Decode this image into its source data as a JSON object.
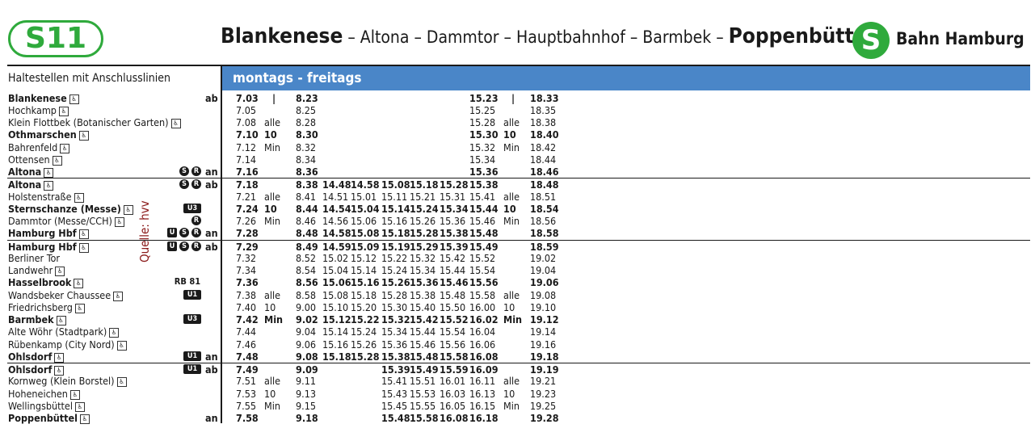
{
  "header": {
    "line": "S11",
    "route_start": "Blankenese",
    "route_mid": "– Altona – Dammtor – Hauptbahnhof – Barmbek –",
    "route_end": "Poppenbüttel",
    "logo_letter": "S",
    "operator": "Bahn Hamburg"
  },
  "table": {
    "stops_header": "Haltestellen mit Anschlusslinien",
    "day_header": "montags - freitags",
    "source_note": "Quelle: hvv",
    "rows": [
      {
        "name": "Blankenese",
        "acc": true,
        "bold": true,
        "conn": [],
        "arr": "ab",
        "t1": "7.03",
        "f1": "|",
        "t2": "8.23",
        "mid": [
          "",
          "",
          "",
          "",
          "",
          ""
        ],
        "t3": "15.23",
        "f2": "|",
        "t4": "18.33",
        "sep": false,
        "alt": false
      },
      {
        "name": "Hochkamp",
        "acc": true,
        "bold": false,
        "conn": [],
        "arr": "",
        "t1": "7.05",
        "f1": "",
        "t2": "8.25",
        "mid": [
          "",
          "",
          "",
          "",
          "",
          ""
        ],
        "t3": "15.25",
        "f2": "",
        "t4": "18.35",
        "sep": false,
        "alt": false
      },
      {
        "name": "Klein Flottbek (Botanischer Garten)",
        "acc": true,
        "bold": false,
        "conn": [],
        "arr": "",
        "t1": "7.08",
        "f1": "alle",
        "t2": "8.28",
        "mid": [
          "",
          "",
          "",
          "",
          "",
          ""
        ],
        "t3": "15.28",
        "f2": "alle",
        "t4": "18.38",
        "sep": false,
        "alt": false
      },
      {
        "name": "Othmarschen",
        "acc": true,
        "bold": true,
        "conn": [],
        "arr": "",
        "t1": "7.10",
        "f1": "10",
        "t2": "8.30",
        "mid": [
          "",
          "",
          "",
          "",
          "",
          ""
        ],
        "t3": "15.30",
        "f2": "10",
        "t4": "18.40",
        "sep": false,
        "alt": false
      },
      {
        "name": "Bahrenfeld",
        "acc": true,
        "bold": false,
        "conn": [],
        "arr": "",
        "t1": "7.12",
        "f1": "Min",
        "t2": "8.32",
        "mid": [
          "",
          "",
          "",
          "",
          "",
          ""
        ],
        "t3": "15.32",
        "f2": "Min",
        "t4": "18.42",
        "sep": false,
        "alt": false
      },
      {
        "name": "Ottensen",
        "acc": true,
        "bold": false,
        "conn": [],
        "arr": "",
        "t1": "7.14",
        "f1": "",
        "t2": "8.34",
        "mid": [
          "",
          "",
          "",
          "",
          "",
          ""
        ],
        "t3": "15.34",
        "f2": "",
        "t4": "18.44",
        "sep": false,
        "alt": false
      },
      {
        "name": "Altona",
        "acc": true,
        "bold": true,
        "conn": [
          "S",
          "R"
        ],
        "arr": "an",
        "t1": "7.16",
        "f1": "",
        "t2": "8.36",
        "mid": [
          "",
          "",
          "",
          "",
          "",
          ""
        ],
        "t3": "15.36",
        "f2": "",
        "t4": "18.46",
        "sep": false,
        "alt": false
      },
      {
        "name": "Altona",
        "acc": true,
        "bold": true,
        "conn": [
          "S",
          "R"
        ],
        "arr": "ab",
        "t1": "7.18",
        "f1": "",
        "t2": "8.38",
        "mid": [
          "14.48",
          "14.58",
          "15.08",
          "15.18",
          "15.28",
          "15.38"
        ],
        "t3": "",
        "f2": "",
        "t4": "18.48",
        "sep": true,
        "alt": false
      },
      {
        "name": "Holstenstraße",
        "acc": true,
        "bold": false,
        "conn": [],
        "arr": "",
        "t1": "7.21",
        "f1": "alle",
        "t2": "8.41",
        "mid": [
          "14.51",
          "15.01",
          "15.11",
          "15.21",
          "15.31",
          "15.41"
        ],
        "t3": "",
        "f2": "alle",
        "t4": "18.51",
        "sep": false,
        "alt": false
      },
      {
        "name": "Sternschanze (Messe)",
        "acc": true,
        "bold": true,
        "conn": [
          "U3"
        ],
        "arr": "",
        "t1": "7.24",
        "f1": "10",
        "t2": "8.44",
        "mid": [
          "14.54",
          "15.04",
          "15.14",
          "15.24",
          "15.34",
          "15.44"
        ],
        "t3": "",
        "f2": "10",
        "t4": "18.54",
        "sep": false,
        "alt": false
      },
      {
        "name": "Dammtor (Messe/CCH)",
        "acc": true,
        "bold": false,
        "conn": [
          "R"
        ],
        "arr": "",
        "t1": "7.26",
        "f1": "Min",
        "t2": "8.46",
        "mid": [
          "14.56",
          "15.06",
          "15.16",
          "15.26",
          "15.36",
          "15.46"
        ],
        "t3": "",
        "f2": "Min",
        "t4": "18.56",
        "sep": false,
        "alt": false
      },
      {
        "name": "Hamburg Hbf",
        "acc": true,
        "bold": true,
        "conn": [
          "U",
          "S",
          "R"
        ],
        "arr": "an",
        "t1": "7.28",
        "f1": "",
        "t2": "8.48",
        "mid": [
          "14.58",
          "15.08",
          "15.18",
          "15.28",
          "15.38",
          "15.48"
        ],
        "t3": "",
        "f2": "",
        "t4": "18.58",
        "sep": false,
        "alt": false
      },
      {
        "name": "Hamburg Hbf",
        "acc": true,
        "bold": true,
        "conn": [
          "U",
          "S",
          "R"
        ],
        "arr": "ab",
        "t1": "7.29",
        "f1": "",
        "t2": "8.49",
        "mid": [
          "14.59",
          "15.09",
          "15.19",
          "15.29",
          "15.39",
          "15.49"
        ],
        "t3": "",
        "f2": "",
        "t4": "18.59",
        "sep": true,
        "alt": false
      },
      {
        "name": "Berliner Tor",
        "acc": false,
        "bold": false,
        "conn": [],
        "arr": "",
        "t1": "7.32",
        "f1": "",
        "t2": "8.52",
        "mid": [
          "15.02",
          "15.12",
          "15.22",
          "15.32",
          "15.42",
          "15.52"
        ],
        "t3": "",
        "f2": "",
        "t4": "19.02",
        "sep": false,
        "alt": false
      },
      {
        "name": "Landwehr",
        "acc": true,
        "bold": false,
        "conn": [],
        "arr": "",
        "t1": "7.34",
        "f1": "",
        "t2": "8.54",
        "mid": [
          "15.04",
          "15.14",
          "15.24",
          "15.34",
          "15.44",
          "15.54"
        ],
        "t3": "",
        "f2": "",
        "t4": "19.04",
        "sep": false,
        "alt": false
      },
      {
        "name": "Hasselbrook",
        "acc": true,
        "bold": true,
        "conn": [
          "RB 81"
        ],
        "arr": "",
        "t1": "7.36",
        "f1": "",
        "t2": "8.56",
        "mid": [
          "15.06",
          "15.16",
          "15.26",
          "15.36",
          "15.46",
          "15.56"
        ],
        "t3": "",
        "f2": "",
        "t4": "19.06",
        "sep": false,
        "alt": false
      },
      {
        "name": "Wandsbeker Chaussee",
        "acc": true,
        "bold": false,
        "conn": [
          "U1"
        ],
        "arr": "",
        "t1": "7.38",
        "f1": "alle",
        "t2": "8.58",
        "mid": [
          "15.08",
          "15.18",
          "15.28",
          "15.38",
          "15.48",
          "15.58"
        ],
        "t3": "",
        "f2": "alle",
        "t4": "19.08",
        "sep": false,
        "alt": false
      },
      {
        "name": "Friedrichsberg",
        "acc": true,
        "bold": false,
        "conn": [],
        "arr": "",
        "t1": "7.40",
        "f1": "10",
        "t2": "9.00",
        "mid": [
          "15.10",
          "15.20",
          "15.30",
          "15.40",
          "15.50",
          "16.00"
        ],
        "t3": "",
        "f2": "10",
        "t4": "19.10",
        "sep": false,
        "alt": false
      },
      {
        "name": "Barmbek",
        "acc": true,
        "bold": true,
        "conn": [
          "U3"
        ],
        "arr": "",
        "t1": "7.42",
        "f1": "Min",
        "t2": "9.02",
        "mid": [
          "15.12",
          "15.22",
          "15.32",
          "15.42",
          "15.52",
          "16.02"
        ],
        "t3": "",
        "f2": "Min",
        "t4": "19.12",
        "sep": false,
        "alt": false
      },
      {
        "name": "Alte Wöhr (Stadtpark)",
        "acc": true,
        "bold": false,
        "conn": [],
        "arr": "",
        "t1": "7.44",
        "f1": "",
        "t2": "9.04",
        "mid": [
          "15.14",
          "15.24",
          "15.34",
          "15.44",
          "15.54",
          "16.04"
        ],
        "t3": "",
        "f2": "",
        "t4": "19.14",
        "sep": false,
        "alt": false
      },
      {
        "name": "Rübenkamp (City Nord)",
        "acc": true,
        "bold": false,
        "conn": [],
        "arr": "",
        "t1": "7.46",
        "f1": "",
        "t2": "9.06",
        "mid": [
          "15.16",
          "15.26",
          "15.36",
          "15.46",
          "15.56",
          "16.06"
        ],
        "t3": "",
        "f2": "",
        "t4": "19.16",
        "sep": false,
        "alt": false
      },
      {
        "name": "Ohlsdorf",
        "acc": true,
        "bold": true,
        "conn": [
          "U1"
        ],
        "arr": "an",
        "t1": "7.48",
        "f1": "",
        "t2": "9.08",
        "mid": [
          "15.18",
          "15.28",
          "15.38",
          "15.48",
          "15.58",
          "16.08"
        ],
        "t3": "",
        "f2": "",
        "t4": "19.18",
        "sep": false,
        "alt": false
      },
      {
        "name": "Ohlsdorf",
        "acc": true,
        "bold": true,
        "conn": [
          "U1"
        ],
        "arr": "ab",
        "t1": "7.49",
        "f1": "",
        "t2": "9.09",
        "mid": [
          "",
          "",
          "15.39",
          "15.49",
          "15.59",
          "16.09"
        ],
        "t3": "",
        "f2": "",
        "t4": "19.19",
        "sep": true,
        "alt": false
      },
      {
        "name": "Kornweg (Klein Borstel)",
        "acc": true,
        "bold": false,
        "conn": [],
        "arr": "",
        "t1": "7.51",
        "f1": "alle",
        "t2": "9.11",
        "mid": [
          "",
          "",
          "15.41",
          "15.51",
          "16.01",
          "16.11"
        ],
        "t3": "",
        "f2": "alle",
        "t4": "19.21",
        "sep": false,
        "alt": false
      },
      {
        "name": "Hoheneichen",
        "acc": true,
        "bold": false,
        "conn": [],
        "arr": "",
        "t1": "7.53",
        "f1": "10",
        "t2": "9.13",
        "mid": [
          "",
          "",
          "15.43",
          "15.53",
          "16.03",
          "16.13"
        ],
        "t3": "",
        "f2": "10",
        "t4": "19.23",
        "sep": false,
        "alt": false
      },
      {
        "name": "Wellingsbüttel",
        "acc": true,
        "bold": false,
        "conn": [],
        "arr": "",
        "t1": "7.55",
        "f1": "Min",
        "t2": "9.15",
        "mid": [
          "",
          "",
          "15.45",
          "15.55",
          "16.05",
          "16.15"
        ],
        "t3": "",
        "f2": "Min",
        "t4": "19.25",
        "sep": false,
        "alt": false
      },
      {
        "name": "Poppenbüttel",
        "acc": true,
        "bold": true,
        "conn": [],
        "arr": "an",
        "t1": "7.58",
        "f1": "",
        "t2": "9.18",
        "mid": [
          "",
          "",
          "15.48",
          "15.58",
          "16.08",
          "16.18"
        ],
        "t3": "",
        "f2": "",
        "t4": "19.28",
        "sep": false,
        "alt": false
      }
    ]
  }
}
